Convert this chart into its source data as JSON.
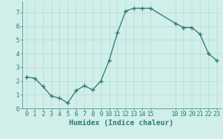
{
  "xlabel": "Humidex (Indice chaleur)",
  "x_values": [
    0,
    1,
    2,
    3,
    4,
    5,
    6,
    7,
    8,
    9,
    10,
    11,
    12,
    13,
    14,
    15,
    18,
    19,
    20,
    21,
    22,
    23
  ],
  "y_values": [
    2.3,
    2.2,
    1.6,
    0.9,
    0.75,
    0.4,
    1.3,
    1.65,
    1.35,
    2.0,
    3.5,
    5.5,
    7.1,
    7.3,
    7.3,
    7.3,
    6.2,
    5.9,
    5.9,
    5.4,
    4.0,
    3.5
  ],
  "line_color": "#2e7d6e",
  "marker": "+",
  "marker_size": 4,
  "bg_color": "#d0eeea",
  "grid_color": "#b8d8d2",
  "axis_color": "#2e7d6e",
  "ylim": [
    0,
    7.8
  ],
  "xlim": [
    -0.5,
    23.5
  ],
  "yticks": [
    0,
    1,
    2,
    3,
    4,
    5,
    6,
    7
  ],
  "xticks": [
    0,
    1,
    2,
    3,
    4,
    5,
    6,
    7,
    8,
    9,
    10,
    11,
    12,
    13,
    14,
    15,
    18,
    19,
    20,
    21,
    22,
    23
  ],
  "xlabel_fontsize": 7.5,
  "tick_fontsize": 6.5,
  "linewidth": 1.0,
  "marker_linewidth": 1.0
}
